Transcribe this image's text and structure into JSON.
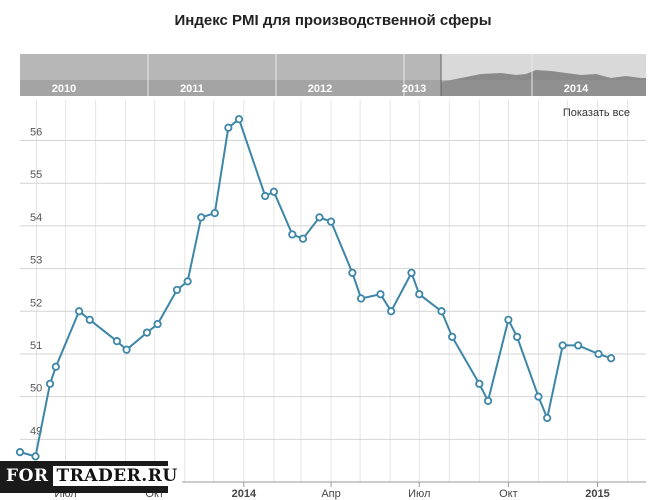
{
  "chart_data": {
    "type": "line",
    "title": "Индекс PMI для производственной сферы",
    "xlabel": "",
    "ylabel": "",
    "x_range": [
      "2013-05-15",
      "2015-02-20"
    ],
    "ylim": [
      48.0,
      56.95
    ],
    "y_ticks": [
      49,
      50,
      51,
      52,
      53,
      54,
      55,
      56
    ],
    "x_ticks": [
      {
        "date": "2013-07-01",
        "label": "Июл",
        "bold": false
      },
      {
        "date": "2013-10-01",
        "label": "Окт",
        "bold": false
      },
      {
        "date": "2014-01-01",
        "label": "2014",
        "bold": true
      },
      {
        "date": "2014-04-01",
        "label": "Апр",
        "bold": false
      },
      {
        "date": "2014-07-01",
        "label": "Июл",
        "bold": false
      },
      {
        "date": "2014-10-01",
        "label": "Окт",
        "bold": false
      },
      {
        "date": "2015-01-01",
        "label": "2015",
        "bold": true
      }
    ],
    "grid": true,
    "series_color": "#3d86a8",
    "points": [
      {
        "x": "2013-05-15",
        "y": 48.7
      },
      {
        "x": "2013-05-31",
        "y": 48.6
      },
      {
        "x": "2013-06-15",
        "y": 50.3
      },
      {
        "x": "2013-06-21",
        "y": 50.7
      },
      {
        "x": "2013-07-15",
        "y": 52.0
      },
      {
        "x": "2013-07-26",
        "y": 51.8
      },
      {
        "x": "2013-08-23",
        "y": 51.3
      },
      {
        "x": "2013-09-02",
        "y": 51.1
      },
      {
        "x": "2013-09-23",
        "y": 51.5
      },
      {
        "x": "2013-10-04",
        "y": 51.7
      },
      {
        "x": "2013-10-24",
        "y": 52.5
      },
      {
        "x": "2013-11-04",
        "y": 52.7
      },
      {
        "x": "2013-11-18",
        "y": 54.2
      },
      {
        "x": "2013-12-02",
        "y": 54.3
      },
      {
        "x": "2013-12-16",
        "y": 56.3
      },
      {
        "x": "2013-12-27",
        "y": 56.5
      },
      {
        "x": "2014-01-23",
        "y": 54.7
      },
      {
        "x": "2014-02-01",
        "y": 54.8
      },
      {
        "x": "2014-02-20",
        "y": 53.8
      },
      {
        "x": "2014-03-03",
        "y": 53.7
      },
      {
        "x": "2014-03-20",
        "y": 54.2
      },
      {
        "x": "2014-04-01",
        "y": 54.1
      },
      {
        "x": "2014-04-23",
        "y": 52.9
      },
      {
        "x": "2014-05-02",
        "y": 52.3
      },
      {
        "x": "2014-05-22",
        "y": 52.4
      },
      {
        "x": "2014-06-02",
        "y": 52.0
      },
      {
        "x": "2014-06-23",
        "y": 52.9
      },
      {
        "x": "2014-07-01",
        "y": 52.4
      },
      {
        "x": "2014-07-24",
        "y": 52.0
      },
      {
        "x": "2014-08-04",
        "y": 51.4
      },
      {
        "x": "2014-09-01",
        "y": 50.3
      },
      {
        "x": "2014-09-10",
        "y": 49.9
      },
      {
        "x": "2014-10-01",
        "y": 51.8
      },
      {
        "x": "2014-10-10",
        "y": 51.4
      },
      {
        "x": "2014-11-01",
        "y": 50.0
      },
      {
        "x": "2014-11-10",
        "y": 49.5
      },
      {
        "x": "2014-11-26",
        "y": 51.2
      },
      {
        "x": "2014-12-12",
        "y": 51.2
      },
      {
        "x": "2015-01-02",
        "y": 51.0
      },
      {
        "x": "2015-01-15",
        "y": 50.9
      }
    ]
  },
  "navigator": {
    "years": [
      "2010",
      "2011",
      "2012",
      "2013",
      "2014"
    ],
    "selected_range": [
      "2013-05-15",
      "2015-02-20"
    ]
  },
  "ui": {
    "show_all_label": "Показать все"
  },
  "watermark": {
    "brand": "FOR",
    "domain": "TRADER.RU"
  }
}
